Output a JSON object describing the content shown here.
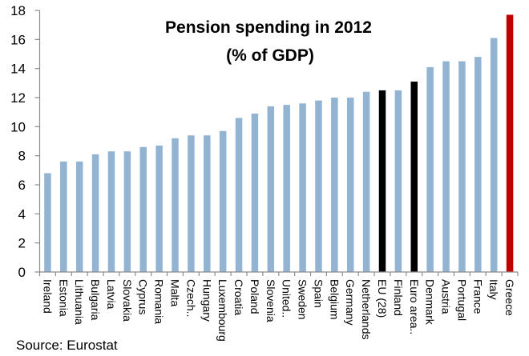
{
  "chart_data": {
    "type": "bar",
    "title": [
      "Pension spending in 2012",
      "(% of GDP)"
    ],
    "xlabel": "",
    "ylabel": "",
    "ylim": [
      0,
      18
    ],
    "yticks": [
      0,
      2,
      4,
      6,
      8,
      10,
      12,
      14,
      16,
      18
    ],
    "grid": false,
    "legend": null,
    "categories": [
      "Ireland",
      "Estonia",
      "Lithuania",
      "Bulgaria",
      "Latvia",
      "Slovakia",
      "Cyprus",
      "Romania",
      "Malta",
      "Czech..",
      "Hungary",
      "Luxembourg",
      "Croatia",
      "Poland",
      "Slovenia",
      "United..",
      "Sweden",
      "Spain",
      "Belgium",
      "Germany",
      "Netherlands",
      "EU (28)",
      "Finland",
      "Euro area..",
      "Denmark",
      "Austria",
      "Portugal",
      "France",
      "Italy",
      "Greece"
    ],
    "values": [
      6.8,
      7.6,
      7.6,
      8.1,
      8.3,
      8.3,
      8.6,
      8.7,
      9.2,
      9.4,
      9.4,
      9.7,
      10.6,
      10.9,
      11.4,
      11.5,
      11.6,
      11.8,
      12.0,
      12.0,
      12.4,
      12.5,
      12.5,
      13.1,
      14.1,
      14.5,
      14.5,
      14.8,
      16.1,
      17.7
    ],
    "bar_colors": {
      "default": "#93b3d2",
      "EU (28)": "#000000",
      "Euro area..": "#000000",
      "Greece": "#c00000"
    },
    "source": "Source: Eurostat"
  }
}
